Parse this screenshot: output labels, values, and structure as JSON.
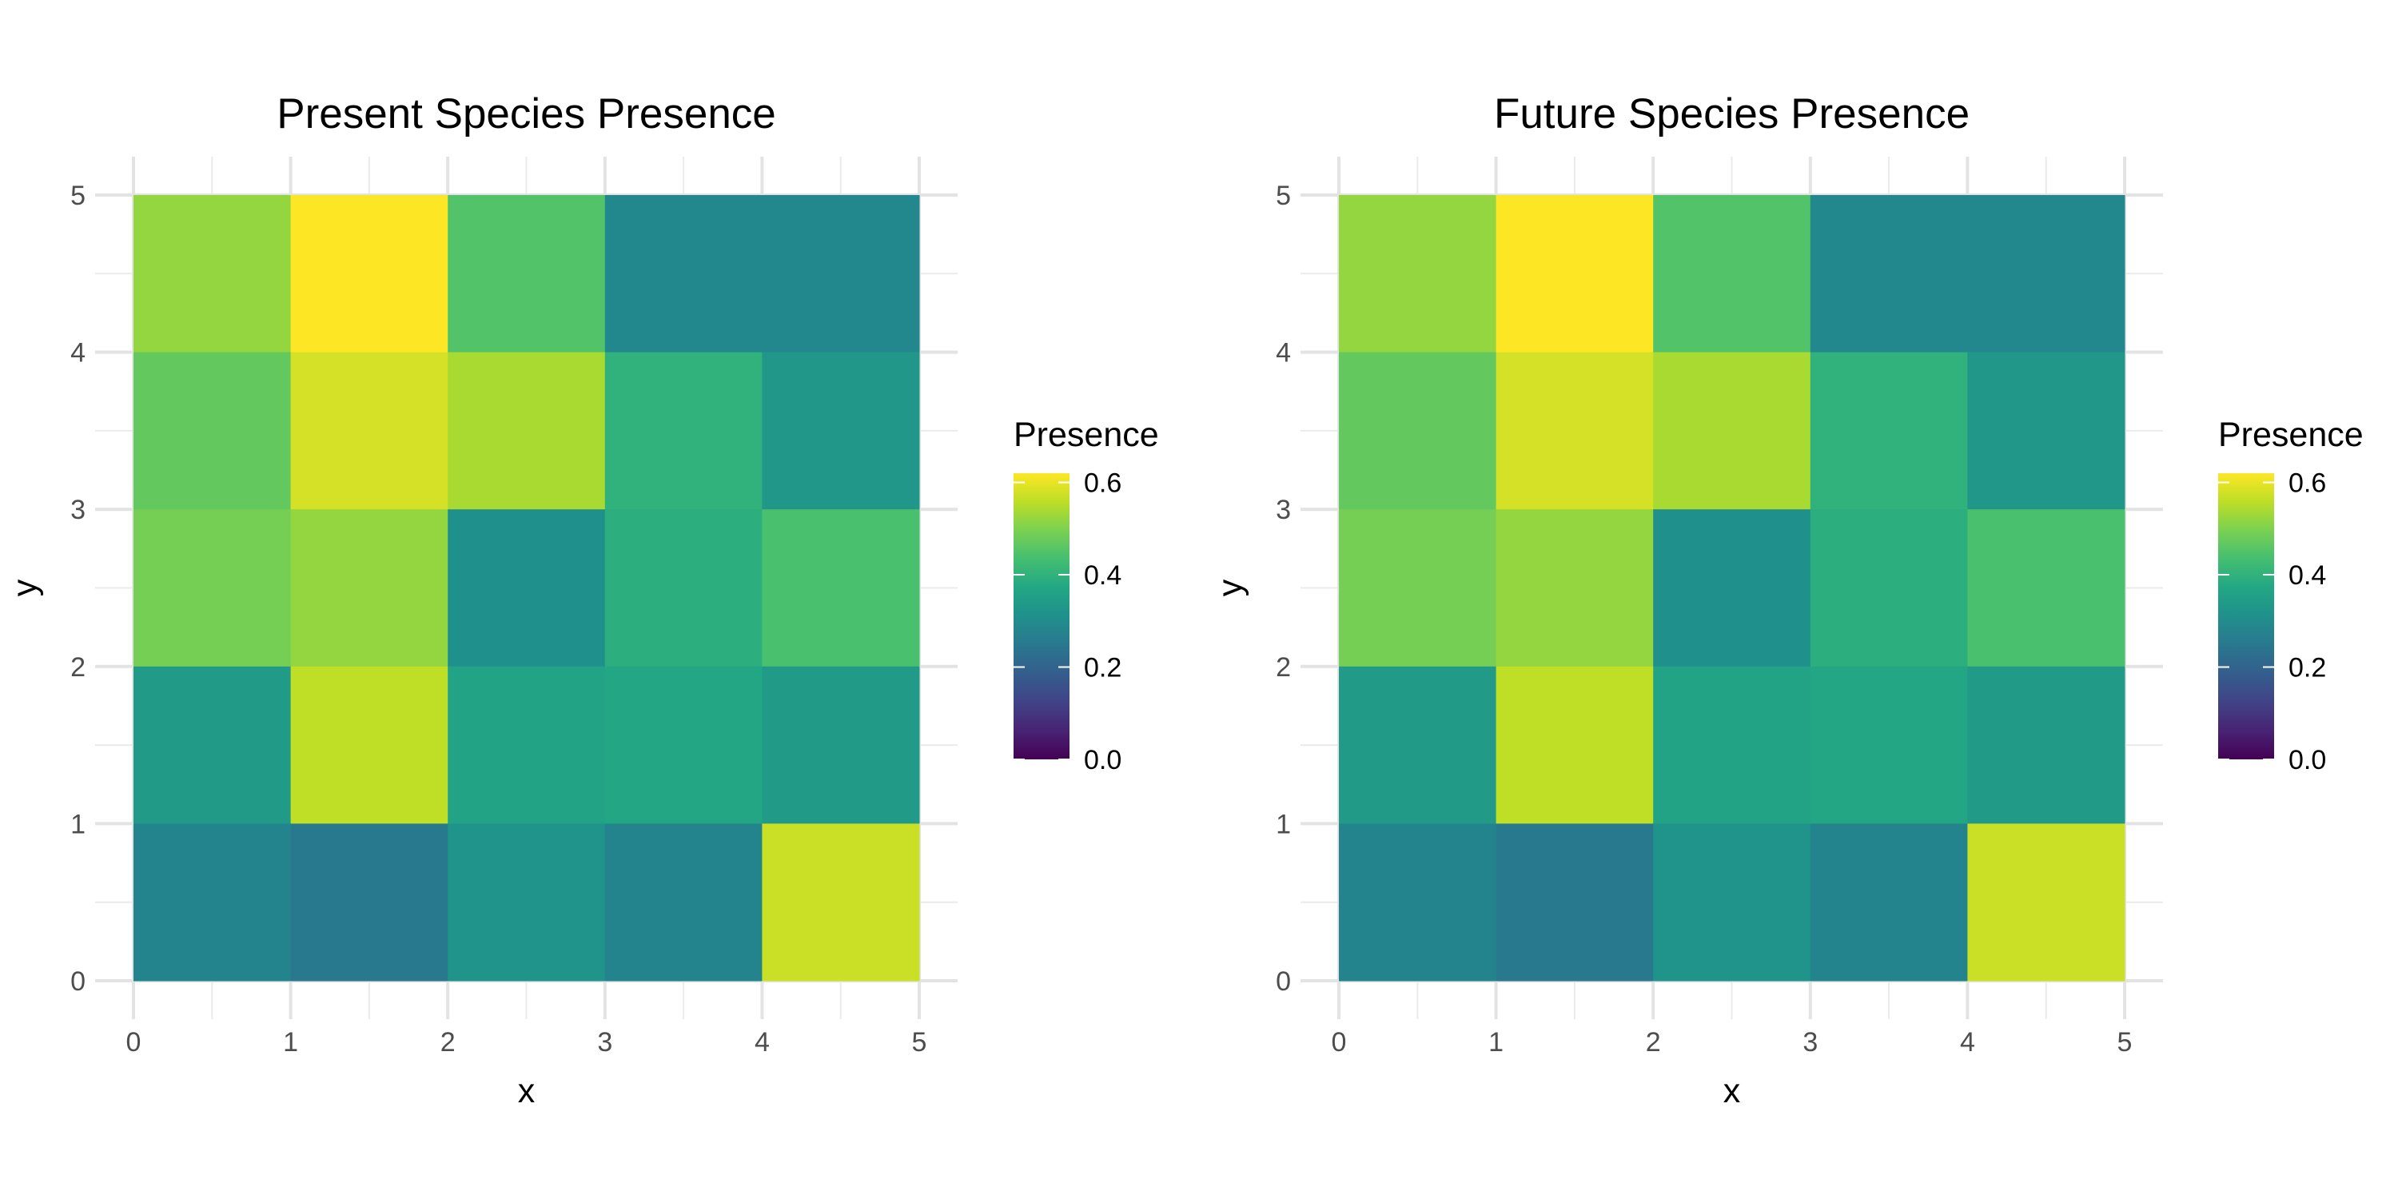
{
  "chart_data": [
    {
      "type": "heatmap",
      "title": "Present Species Presence",
      "xlabel": "x",
      "ylabel": "y",
      "xlim": [
        0,
        5
      ],
      "ylim": [
        0,
        5
      ],
      "x_ticks": [
        0,
        1,
        2,
        3,
        4,
        5
      ],
      "y_ticks": [
        0,
        1,
        2,
        3,
        4,
        5
      ],
      "grid": true,
      "legend": {
        "title": "Presence",
        "position": "right",
        "scale": "viridis",
        "range": [
          0,
          0.62
        ],
        "ticks": [
          "0.0",
          "0.2",
          "0.4",
          "0.6"
        ]
      },
      "rows_top_to_bottom": [
        [
          0.52,
          0.62,
          0.45,
          0.29,
          0.29
        ],
        [
          0.47,
          0.58,
          0.54,
          0.4,
          0.33
        ],
        [
          0.49,
          0.52,
          0.31,
          0.39,
          0.44
        ],
        [
          0.34,
          0.56,
          0.36,
          0.37,
          0.34
        ],
        [
          0.28,
          0.25,
          0.32,
          0.28,
          0.57
        ]
      ]
    },
    {
      "type": "heatmap",
      "title": "Future Species Presence",
      "xlabel": "x",
      "ylabel": "y",
      "xlim": [
        0,
        5
      ],
      "ylim": [
        0,
        5
      ],
      "x_ticks": [
        0,
        1,
        2,
        3,
        4,
        5
      ],
      "y_ticks": [
        0,
        1,
        2,
        3,
        4,
        5
      ],
      "grid": true,
      "legend": {
        "title": "Presence",
        "position": "right",
        "scale": "viridis",
        "range": [
          0,
          0.62
        ],
        "ticks": [
          "0.0",
          "0.2",
          "0.4",
          "0.6"
        ]
      },
      "rows_top_to_bottom": [
        [
          0.52,
          0.62,
          0.45,
          0.29,
          0.29
        ],
        [
          0.47,
          0.58,
          0.54,
          0.4,
          0.33
        ],
        [
          0.49,
          0.52,
          0.31,
          0.39,
          0.44
        ],
        [
          0.34,
          0.56,
          0.36,
          0.37,
          0.34
        ],
        [
          0.28,
          0.25,
          0.32,
          0.28,
          0.57
        ]
      ]
    }
  ]
}
